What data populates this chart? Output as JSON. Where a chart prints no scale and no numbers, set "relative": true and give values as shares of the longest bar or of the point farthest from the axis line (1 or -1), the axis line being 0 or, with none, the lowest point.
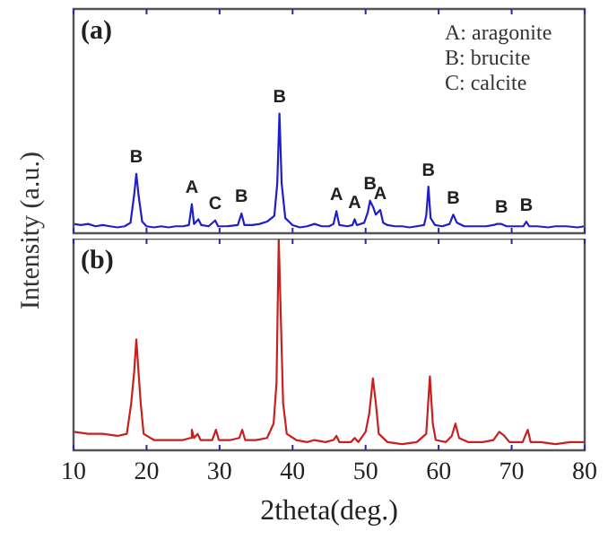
{
  "chart_data": [
    {
      "type": "line",
      "title": "(a)",
      "ylabel": "Intensity (a.u.)",
      "relative": true,
      "xlim": [
        10,
        80
      ],
      "xticks": [
        10,
        20,
        30,
        40,
        50,
        60,
        70,
        80
      ],
      "tick_labels": false,
      "x": [
        10,
        11,
        12,
        13,
        14,
        15,
        16,
        17,
        17.8,
        18.3,
        18.6,
        18.9,
        19.4,
        20,
        21,
        22,
        23,
        24,
        25,
        25.8,
        26.2,
        26.5,
        27.1,
        27.5,
        28.5,
        29.4,
        29.8,
        31,
        32.5,
        33,
        33.4,
        34.5,
        35.5,
        36.5,
        37.5,
        37.9,
        38.2,
        38.5,
        39,
        40,
        41,
        42,
        43,
        44,
        45,
        45.6,
        46,
        46.4,
        47.5,
        48.2,
        48.5,
        48.8,
        49.8,
        50.3,
        50.6,
        51,
        51.4,
        52,
        52.4,
        53,
        54,
        55,
        56,
        57,
        58,
        58.3,
        58.6,
        58.9,
        59.5,
        60.5,
        61.5,
        62,
        62.5,
        63.5,
        65,
        66.5,
        67.5,
        68,
        68.6,
        69.3,
        70.5,
        71.6,
        72,
        72.4,
        73.5,
        75,
        76,
        77.5,
        79,
        80
      ],
      "series": [
        {
          "color": "#1f1fc8",
          "values": [
            0.05,
            0.04,
            0.05,
            0.03,
            0.04,
            0.03,
            0.02,
            0.03,
            0.06,
            0.3,
            0.48,
            0.3,
            0.07,
            0.03,
            0.02,
            0.03,
            0.02,
            0.03,
            0.03,
            0.04,
            0.22,
            0.05,
            0.09,
            0.04,
            0.03,
            0.08,
            0.03,
            0.03,
            0.04,
            0.14,
            0.04,
            0.04,
            0.05,
            0.07,
            0.12,
            0.4,
            1,
            0.4,
            0.1,
            0.04,
            0.02,
            0.03,
            0.05,
            0.03,
            0.03,
            0.05,
            0.16,
            0.04,
            0.03,
            0.04,
            0.09,
            0.04,
            0.06,
            0.15,
            0.25,
            0.2,
            0.13,
            0.17,
            0.06,
            0.04,
            0.03,
            0.03,
            0.02,
            0.03,
            0.04,
            0.12,
            0.37,
            0.1,
            0.04,
            0.03,
            0.05,
            0.13,
            0.06,
            0.03,
            0.03,
            0.03,
            0.04,
            0.05,
            0.05,
            0.03,
            0.03,
            0.03,
            0.07,
            0.03,
            0.03,
            0.02,
            0.03,
            0.03,
            0.02,
            0.03
          ]
        }
      ],
      "annotations": [
        "A: aragonite",
        "B: brucite",
        "C: calcite",
        {
          "text": "B",
          "x": 18.6,
          "y": 0.48
        },
        {
          "text": "A",
          "x": 26.2,
          "y": 0.22
        },
        {
          "text": "C",
          "x": 29.4,
          "y": 0.08
        },
        {
          "text": "B",
          "x": 33,
          "y": 0.14
        },
        {
          "text": "B",
          "x": 38.2,
          "y": 1
        },
        {
          "text": "A",
          "x": 46,
          "y": 0.16
        },
        {
          "text": "A",
          "x": 48.5,
          "y": 0.09
        },
        {
          "text": "B",
          "x": 50.6,
          "y": 0.25
        },
        {
          "text": "A",
          "x": 52,
          "y": 0.17
        },
        {
          "text": "B",
          "x": 58.6,
          "y": 0.37
        },
        {
          "text": "B",
          "x": 62,
          "y": 0.13
        },
        {
          "text": "B",
          "x": 68.6,
          "y": 0.05
        },
        {
          "text": "B",
          "x": 72,
          "y": 0.07
        }
      ]
    },
    {
      "type": "line",
      "title": "(b)",
      "xlabel": "2theta(deg.)",
      "relative": true,
      "xlim": [
        10,
        80
      ],
      "xticks": [
        10,
        20,
        30,
        40,
        50,
        60,
        70,
        80
      ],
      "tick_labels": "x",
      "x": [
        10,
        12,
        14,
        16,
        17.3,
        17.9,
        18.3,
        18.6,
        18.9,
        19.2,
        19.6,
        21,
        23,
        25,
        26,
        26.2,
        26.5,
        27,
        27.4,
        29,
        29.5,
        29.9,
        31.5,
        32.7,
        33.1,
        33.5,
        35,
        36.5,
        37.4,
        37.8,
        38.1,
        38.4,
        38.7,
        39.2,
        40.5,
        42,
        43,
        44.5,
        45.6,
        46,
        46.4,
        48,
        48.5,
        49,
        50,
        50.5,
        51,
        51.4,
        51.8,
        53,
        55,
        57,
        58.3,
        58.8,
        59.2,
        59.6,
        61,
        61.8,
        62.3,
        62.8,
        64,
        66,
        67.5,
        68.3,
        69,
        69.7,
        71.5,
        72.2,
        72.6,
        74,
        76,
        78,
        80
      ],
      "series": [
        {
          "color": "#c81f1f",
          "values": [
            0.06,
            0.05,
            0.05,
            0.04,
            0.05,
            0.2,
            0.35,
            0.51,
            0.35,
            0.2,
            0.05,
            0.02,
            0.02,
            0.02,
            0.03,
            0.07,
            0.03,
            0.05,
            0.02,
            0.02,
            0.07,
            0.02,
            0.02,
            0.03,
            0.07,
            0.02,
            0.02,
            0.03,
            0.1,
            0.3,
            1,
            0.6,
            0.2,
            0.05,
            0.02,
            0.01,
            0.02,
            0.01,
            0.02,
            0.04,
            0.01,
            0.01,
            0.03,
            0.01,
            0.06,
            0.15,
            0.32,
            0.2,
            0.05,
            0.01,
            0,
            0.01,
            0.05,
            0.33,
            0.1,
            0.02,
            0.01,
            0.04,
            0.1,
            0.03,
            0.01,
            0.01,
            0.02,
            0.06,
            0.04,
            0.01,
            0.01,
            0.07,
            0.01,
            0.01,
            0,
            0.01,
            0.01
          ]
        }
      ]
    }
  ]
}
